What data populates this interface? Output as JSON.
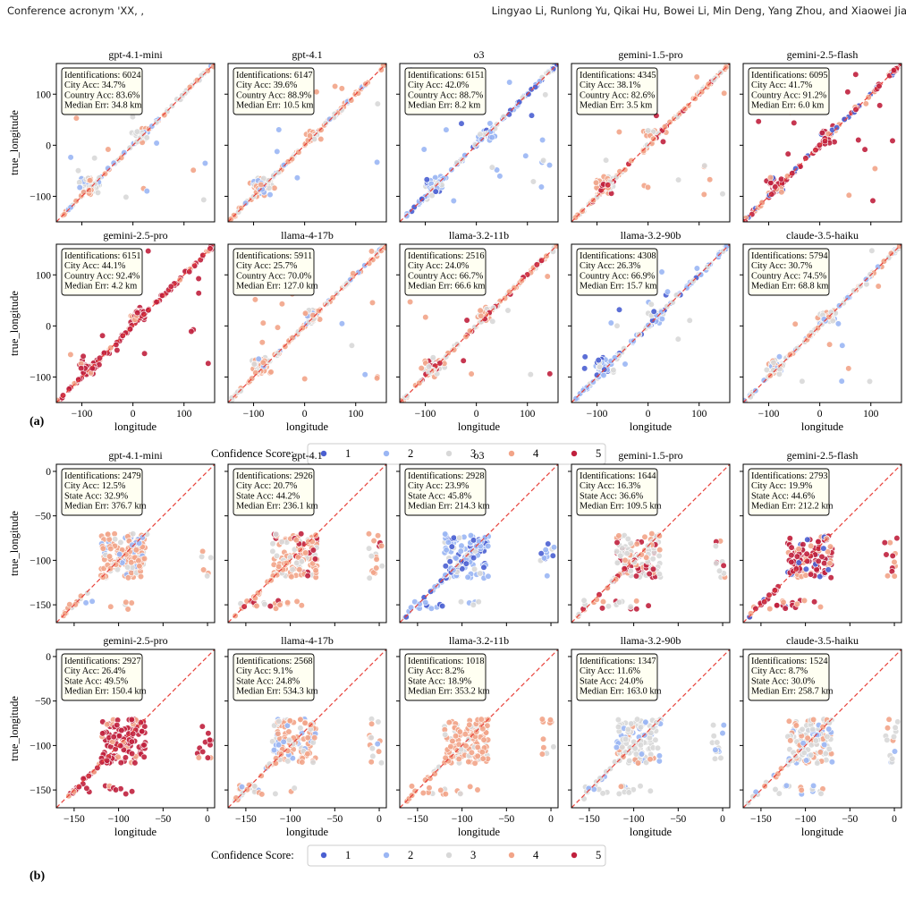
{
  "header": {
    "left": "Conference acronym 'XX, ,",
    "right": "Lingyao Li, Runlong Yu, Qikai Hu, Bowei Li, Min Deng, Yang Zhou, and Xiaowei Jia"
  },
  "colors": {
    "c1": "#4a5fd1",
    "c2": "#9ab6f4",
    "c3": "#d8d8d8",
    "c4": "#f2a488",
    "c5": "#c0203d",
    "diag": "#e8413a",
    "box_bg": "#fffff2"
  },
  "legend": {
    "title": "Confidence Score:",
    "labels": [
      "1",
      "2",
      "3",
      "4",
      "5"
    ]
  },
  "chart_data": [
    {
      "type": "scatter",
      "panel_label": "(a)",
      "xlabel": "longitude",
      "ylabel": "true_longitude",
      "xlim": [
        -150,
        160
      ],
      "ylim": [
        -150,
        160
      ],
      "xticks": [
        -100,
        0,
        100
      ],
      "yticks": [
        -100,
        0,
        100
      ],
      "stat_names": [
        "Identifications",
        "City Acc",
        "Country Acc",
        "Median Err"
      ],
      "models": [
        {
          "name": "gpt-4.1-mini",
          "stats": [
            "6024",
            "34.7%",
            "83.6%",
            "34.8 km"
          ],
          "dominant": [
            3,
            4,
            2
          ]
        },
        {
          "name": "gpt-4.1",
          "stats": [
            "6147",
            "39.6%",
            "88.9%",
            "10.5 km"
          ],
          "dominant": [
            4,
            3,
            2
          ]
        },
        {
          "name": "o3",
          "stats": [
            "6151",
            "42.0%",
            "88.7%",
            "8.2 km"
          ],
          "dominant": [
            2,
            1,
            3
          ]
        },
        {
          "name": "gemini-1.5-pro",
          "stats": [
            "4345",
            "38.1%",
            "82.6%",
            "3.5 km"
          ],
          "dominant": [
            4,
            3,
            5
          ]
        },
        {
          "name": "gemini-2.5-flash",
          "stats": [
            "6095",
            "41.7%",
            "91.2%",
            "6.0 km"
          ],
          "dominant": [
            5,
            4,
            1
          ]
        },
        {
          "name": "gemini-2.5-pro",
          "stats": [
            "6151",
            "44.1%",
            "92.4%",
            "4.2 km"
          ],
          "dominant": [
            5,
            5,
            4
          ]
        },
        {
          "name": "llama-4-17b",
          "stats": [
            "5911",
            "25.7%",
            "70.0%",
            "127.0 km"
          ],
          "dominant": [
            4,
            3,
            2
          ]
        },
        {
          "name": "llama-3.2-11b",
          "stats": [
            "2516",
            "24.0%",
            "66.7%",
            "66.6 km"
          ],
          "dominant": [
            4,
            3,
            5
          ]
        },
        {
          "name": "llama-3.2-90b",
          "stats": [
            "4308",
            "26.3%",
            "66.9%",
            "15.7 km"
          ],
          "dominant": [
            2,
            3,
            1
          ]
        },
        {
          "name": "claude-3.5-haiku",
          "stats": [
            "5794",
            "30.7%",
            "74.5%",
            "68.8 km"
          ],
          "dominant": [
            3,
            4,
            2
          ]
        }
      ]
    },
    {
      "type": "scatter",
      "panel_label": "(b)",
      "xlabel": "longitude",
      "ylabel": "true_longitude",
      "xlim": [
        -170,
        8
      ],
      "ylim": [
        -170,
        8
      ],
      "xticks": [
        -150,
        -100,
        -50,
        0
      ],
      "yticks": [
        -150,
        -100,
        -50,
        0
      ],
      "stat_names": [
        "Identifications",
        "City Acc",
        "State Acc",
        "Median Err"
      ],
      "models": [
        {
          "name": "gpt-4.1-mini",
          "stats": [
            "2479",
            "12.5%",
            "32.9%",
            "376.7 km"
          ],
          "dominant": [
            4,
            3,
            2
          ]
        },
        {
          "name": "gpt-4.1",
          "stats": [
            "2926",
            "20.7%",
            "44.2%",
            "236.1 km"
          ],
          "dominant": [
            4,
            3,
            5
          ]
        },
        {
          "name": "o3",
          "stats": [
            "2928",
            "23.9%",
            "45.8%",
            "214.3 km"
          ],
          "dominant": [
            2,
            1,
            3
          ]
        },
        {
          "name": "gemini-1.5-pro",
          "stats": [
            "1644",
            "16.3%",
            "36.6%",
            "109.5 km"
          ],
          "dominant": [
            3,
            5,
            4
          ]
        },
        {
          "name": "gemini-2.5-flash",
          "stats": [
            "2793",
            "19.9%",
            "44.6%",
            "212.2 km"
          ],
          "dominant": [
            5,
            4,
            1
          ]
        },
        {
          "name": "gemini-2.5-pro",
          "stats": [
            "2927",
            "26.4%",
            "49.5%",
            "150.4 km"
          ],
          "dominant": [
            5,
            5,
            4
          ]
        },
        {
          "name": "llama-4-17b",
          "stats": [
            "2568",
            "9.1%",
            "24.8%",
            "534.3 km"
          ],
          "dominant": [
            4,
            3,
            2
          ]
        },
        {
          "name": "llama-3.2-11b",
          "stats": [
            "1018",
            "8.2%",
            "18.9%",
            "353.2 km"
          ],
          "dominant": [
            4,
            4,
            3
          ]
        },
        {
          "name": "llama-3.2-90b",
          "stats": [
            "1347",
            "11.6%",
            "24.0%",
            "163.0 km"
          ],
          "dominant": [
            3,
            2,
            4
          ]
        },
        {
          "name": "claude-3.5-haiku",
          "stats": [
            "1524",
            "8.7%",
            "30.0%",
            "258.7 km"
          ],
          "dominant": [
            3,
            4,
            2
          ]
        }
      ]
    }
  ]
}
